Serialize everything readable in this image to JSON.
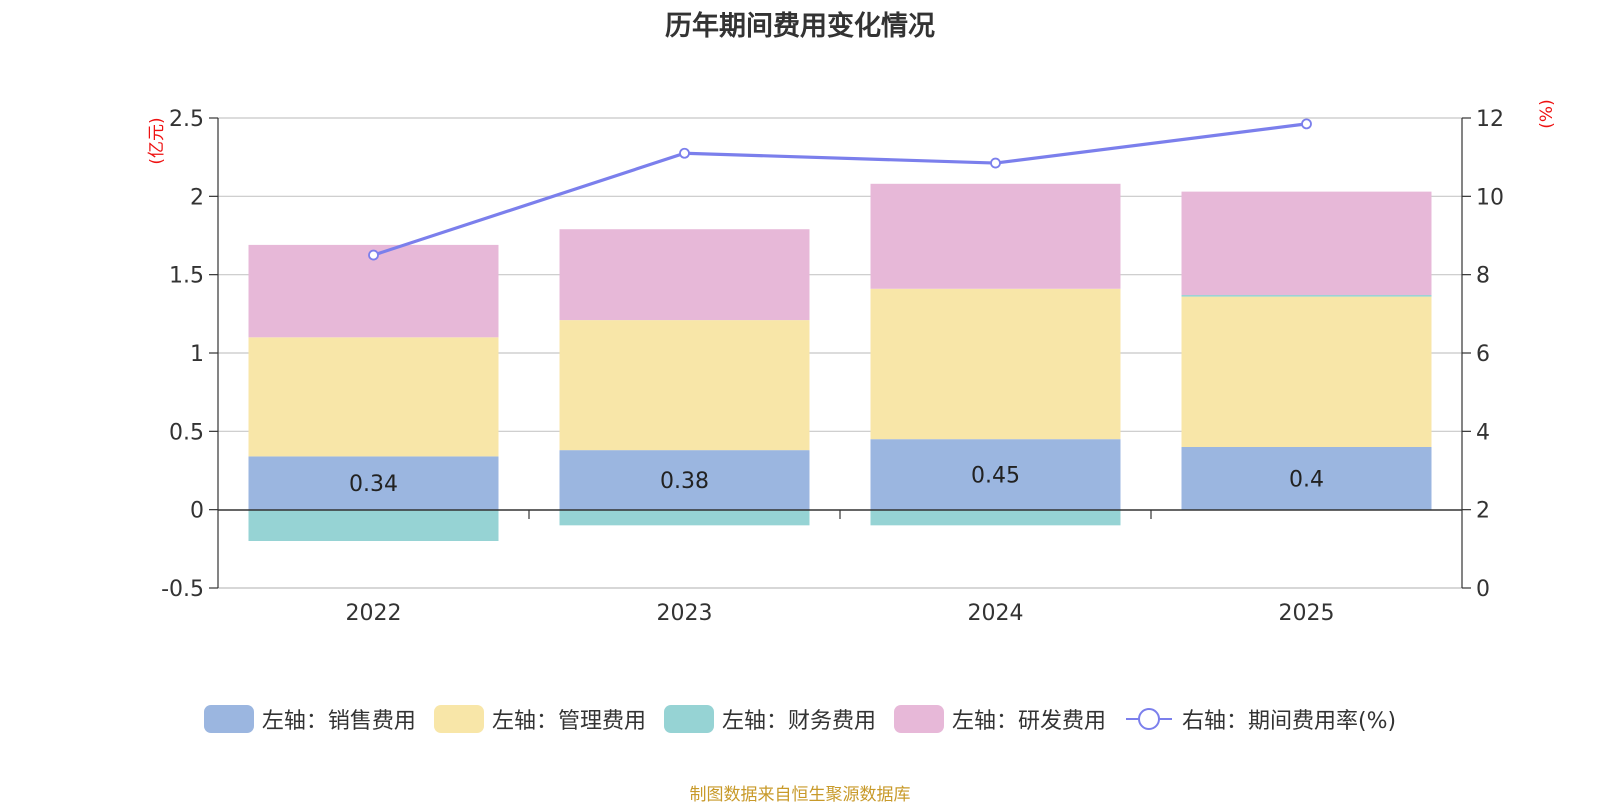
{
  "chart_data": {
    "type": "bar",
    "stacked": true,
    "title": "历年期间费用变化情况",
    "categories": [
      "2022",
      "2023",
      "2024",
      "2025"
    ],
    "left_axis": {
      "unit": "(亿元)",
      "range": [
        -0.5,
        2.5
      ],
      "ticks": [
        "2.5",
        "2",
        "1.5",
        "1",
        "0.5",
        "0",
        "-0.5"
      ]
    },
    "right_axis": {
      "unit": "(%)",
      "range": [
        0,
        12
      ],
      "ticks": [
        "12",
        "10",
        "8",
        "6",
        "4",
        "2",
        "0"
      ]
    },
    "series": [
      {
        "name": "左轴：销售费用",
        "type": "bar",
        "axis": "left",
        "color": "#9bb6e0",
        "values": [
          0.34,
          0.38,
          0.45,
          0.4
        ],
        "labels": [
          "0.34",
          "0.38",
          "0.45",
          "0.4"
        ]
      },
      {
        "name": "左轴：管理费用",
        "type": "bar",
        "axis": "left",
        "color": "#f8e6a8",
        "values": [
          0.76,
          0.83,
          0.96,
          0.96
        ]
      },
      {
        "name": "左轴：财务费用",
        "type": "bar",
        "axis": "left",
        "color": "#96d3d4",
        "values": [
          -0.2,
          -0.1,
          -0.1,
          0.01
        ]
      },
      {
        "name": "左轴：研发费用",
        "type": "bar",
        "axis": "left",
        "color": "#e7b8d8",
        "values": [
          0.59,
          0.58,
          0.67,
          0.66
        ]
      },
      {
        "name": "右轴：期间费用率(%)",
        "type": "line",
        "axis": "right",
        "color": "#7b7fec",
        "values": [
          8.5,
          11.1,
          10.85,
          11.85
        ]
      }
    ]
  },
  "source_text": "制图数据来自恒生聚源数据库"
}
